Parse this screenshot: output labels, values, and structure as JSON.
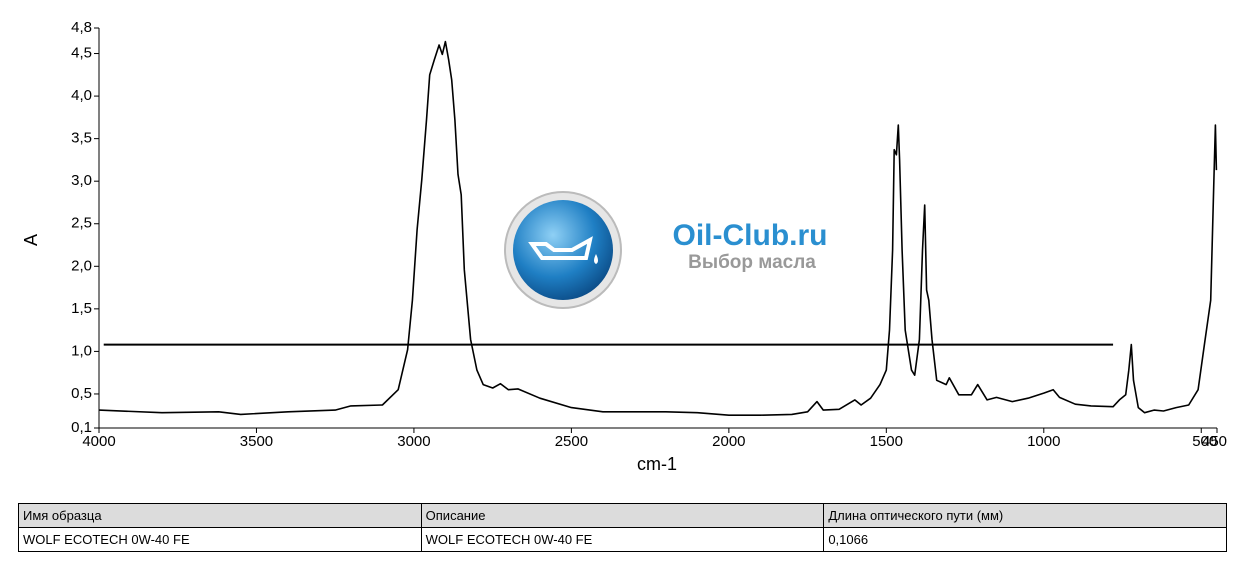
{
  "chart_data": {
    "type": "line",
    "xlabel": "cm-1",
    "ylabel": "A",
    "color": "#000000",
    "xlim": [
      4000,
      450
    ],
    "xticks": [
      4000,
      3500,
      3000,
      2500,
      2000,
      1500,
      1000,
      500,
      450
    ],
    "ylim": [
      0.1,
      4.8
    ],
    "yticks": [
      {
        "value": 0.1,
        "label": "0,1"
      },
      {
        "value": 0.5,
        "label": "0,5"
      },
      {
        "value": 1.0,
        "label": "1,0"
      },
      {
        "value": 1.5,
        "label": "1,5"
      },
      {
        "value": 2.0,
        "label": "2,0"
      },
      {
        "value": 2.5,
        "label": "2,5"
      },
      {
        "value": 3.0,
        "label": "3,0"
      },
      {
        "value": 3.5,
        "label": "3,5"
      },
      {
        "value": 4.0,
        "label": "4,0"
      },
      {
        "value": 4.5,
        "label": "4,5"
      },
      {
        "value": 4.8,
        "label": "4,8"
      }
    ],
    "hline": {
      "y": 1.08,
      "x": [
        3985,
        780
      ]
    },
    "x": [
      4000,
      3800,
      3620,
      3550,
      3400,
      3250,
      3200,
      3100,
      3050,
      3020,
      3005,
      2990,
      2975,
      2960,
      2950,
      2935,
      2920,
      2910,
      2900,
      2890,
      2880,
      2870,
      2860,
      2850,
      2840,
      2820,
      2800,
      2780,
      2750,
      2725,
      2700,
      2670,
      2600,
      2500,
      2400,
      2200,
      2100,
      2000,
      1900,
      1800,
      1750,
      1720,
      1700,
      1650,
      1600,
      1580,
      1550,
      1520,
      1500,
      1490,
      1480,
      1475,
      1468,
      1462,
      1458,
      1450,
      1440,
      1420,
      1410,
      1395,
      1385,
      1378,
      1372,
      1365,
      1355,
      1340,
      1310,
      1300,
      1270,
      1230,
      1210,
      1180,
      1150,
      1100,
      1050,
      1000,
      970,
      950,
      900,
      850,
      780,
      760,
      740,
      730,
      722,
      715,
      700,
      680,
      650,
      620,
      580,
      540,
      510,
      490,
      470,
      460,
      455,
      452
    ],
    "values": [
      0.31,
      0.28,
      0.29,
      0.26,
      0.29,
      0.31,
      0.36,
      0.37,
      0.55,
      1.02,
      1.6,
      2.43,
      3.02,
      3.72,
      4.25,
      4.43,
      4.6,
      4.49,
      4.64,
      4.43,
      4.19,
      3.72,
      3.08,
      2.84,
      1.96,
      1.14,
      0.78,
      0.61,
      0.57,
      0.62,
      0.55,
      0.56,
      0.45,
      0.34,
      0.29,
      0.29,
      0.28,
      0.25,
      0.25,
      0.26,
      0.29,
      0.41,
      0.31,
      0.32,
      0.43,
      0.37,
      0.45,
      0.61,
      0.78,
      1.25,
      2.19,
      3.37,
      3.31,
      3.66,
      3.25,
      2.19,
      1.25,
      0.78,
      0.72,
      1.14,
      2.19,
      2.72,
      1.72,
      1.6,
      1.14,
      0.66,
      0.61,
      0.69,
      0.49,
      0.49,
      0.61,
      0.43,
      0.46,
      0.41,
      0.45,
      0.51,
      0.55,
      0.46,
      0.38,
      0.36,
      0.35,
      0.43,
      0.49,
      0.78,
      1.08,
      0.66,
      0.34,
      0.28,
      0.31,
      0.3,
      0.34,
      0.37,
      0.55,
      1.08,
      1.6,
      3.02,
      3.66,
      3.13
    ]
  },
  "logo": {
    "title": "Oil-Club.ru",
    "subtitle": "Выбор масла"
  },
  "table": {
    "header": [
      "Имя образца",
      "Описание",
      "Длина оптического пути (мм)"
    ],
    "rows": [
      [
        "WOLF ECOTECH 0W-40 FE",
        "WOLF ECOTECH 0W-40 FE",
        "0,1066"
      ]
    ]
  }
}
